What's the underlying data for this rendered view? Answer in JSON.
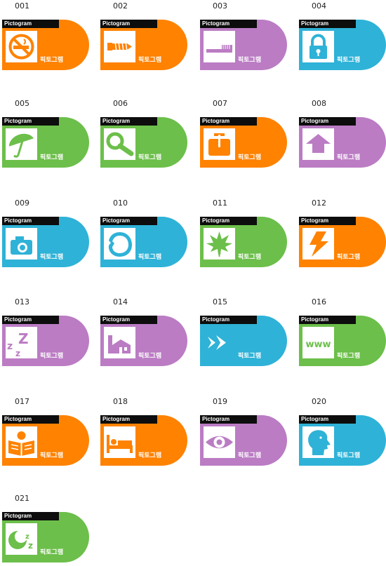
{
  "header_label": "Pictogram",
  "korean_label": "픽토그램",
  "colors": {
    "orange": "#ff8200",
    "purple": "#bb7cc4",
    "blue": "#2fb2d7",
    "green": "#6cbf4a",
    "tile": "#ffffff"
  },
  "items": [
    {
      "num": "001",
      "color": "orange",
      "icon": "no-smoking-icon"
    },
    {
      "num": "002",
      "color": "orange",
      "icon": "screw-icon"
    },
    {
      "num": "003",
      "color": "purple",
      "icon": "toothbrush-icon"
    },
    {
      "num": "004",
      "color": "blue",
      "icon": "padlock-icon"
    },
    {
      "num": "005",
      "color": "green",
      "icon": "umbrella-icon"
    },
    {
      "num": "006",
      "color": "green",
      "icon": "magnifier-icon"
    },
    {
      "num": "007",
      "color": "orange",
      "icon": "suitcase-icon"
    },
    {
      "num": "008",
      "color": "purple",
      "icon": "up-arrow-icon"
    },
    {
      "num": "009",
      "color": "blue",
      "icon": "camera-icon"
    },
    {
      "num": "010",
      "color": "blue",
      "icon": "shell-icon"
    },
    {
      "num": "011",
      "color": "green",
      "icon": "leaf-icon"
    },
    {
      "num": "012",
      "color": "orange",
      "icon": "lightning-icon"
    },
    {
      "num": "013",
      "color": "purple",
      "icon": "sleep-zzz-icon"
    },
    {
      "num": "014",
      "color": "purple",
      "icon": "house-icon"
    },
    {
      "num": "015",
      "color": "blue",
      "icon": "fast-forward-icon"
    },
    {
      "num": "016",
      "color": "green",
      "icon": "www-icon"
    },
    {
      "num": "017",
      "color": "orange",
      "icon": "reading-book-icon"
    },
    {
      "num": "018",
      "color": "orange",
      "icon": "bed-icon"
    },
    {
      "num": "019",
      "color": "purple",
      "icon": "eye-icon"
    },
    {
      "num": "020",
      "color": "blue",
      "icon": "head-profile-icon"
    },
    {
      "num": "021",
      "color": "green",
      "icon": "sleeping-moon-icon"
    }
  ]
}
